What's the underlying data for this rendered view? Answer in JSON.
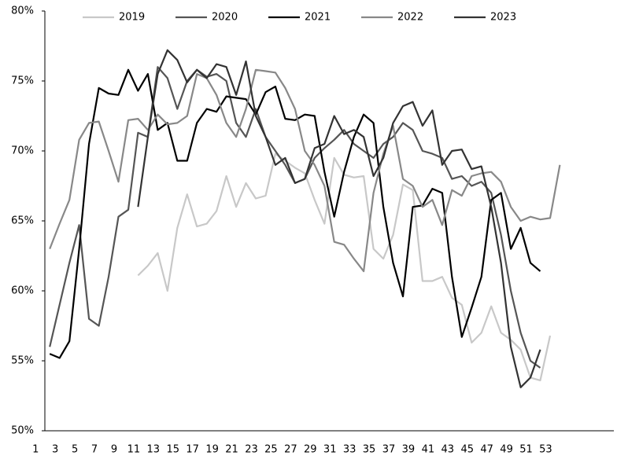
{
  "chart_data": {
    "type": "line",
    "categories": [
      1,
      null,
      3,
      null,
      5,
      null,
      7,
      null,
      9,
      null,
      11,
      null,
      13,
      null,
      15,
      null,
      17,
      null,
      19,
      null,
      21,
      null,
      23,
      null,
      25,
      null,
      27,
      null,
      29,
      null,
      31,
      null,
      33,
      null,
      35,
      null,
      37,
      null,
      39,
      null,
      41,
      null,
      43,
      null,
      45,
      null,
      47,
      null,
      49,
      null,
      51,
      null,
      53,
      null,
      null,
      null,
      null,
      null
    ],
    "series": [
      {
        "name": "2019",
        "color": "#c8c8c8",
        "values": [
          null,
          null,
          null,
          null,
          null,
          null,
          null,
          null,
          null,
          61.1,
          61.8,
          62.7,
          60,
          64.5,
          66.9,
          64.6,
          64.8,
          65.7,
          68.2,
          66,
          67.7,
          66.6,
          66.8,
          69.8,
          69.3,
          68.8,
          68.4,
          66.5,
          64.8,
          69.5,
          68.3,
          68.1,
          68.2,
          63,
          62.3,
          64,
          67.6,
          67.2,
          60.7,
          60.7,
          61,
          59.5,
          59,
          56.3,
          57,
          58.9,
          57,
          56.5,
          55.8,
          53.8,
          53.6,
          56.8,
          null,
          null,
          null,
          null,
          null,
          null
        ]
      },
      {
        "name": "2020",
        "color": "#555555",
        "values": [
          56,
          59,
          62,
          64.7,
          58,
          57.5,
          61,
          65.3,
          65.8,
          71.3,
          71,
          76,
          75.2,
          73,
          75,
          75.8,
          75.3,
          75.5,
          75,
          72,
          71,
          73,
          71,
          70,
          69,
          67.7,
          68,
          69.5,
          70.2,
          70.8,
          71.5,
          70.5,
          70,
          69.5,
          70.5,
          71,
          72,
          71.5,
          70,
          69.8,
          69.5,
          68,
          68.2,
          67.5,
          67.8,
          67,
          64,
          60,
          57,
          55,
          54.5,
          null,
          null,
          null,
          null,
          null,
          null,
          null
        ]
      },
      {
        "name": "2021",
        "color": "#000000",
        "values": [
          55.5,
          55.2,
          56.4,
          63,
          70.5,
          74.5,
          74.1,
          74,
          75.8,
          74.3,
          75.5,
          71.5,
          72,
          69.3,
          69.3,
          72,
          73,
          72.8,
          73.9,
          73.8,
          73.7,
          72.6,
          74.2,
          74.6,
          72.3,
          72.2,
          72.6,
          72.5,
          68.5,
          65.3,
          68.5,
          71,
          72.6,
          72,
          66,
          62,
          59.6,
          66,
          66.1,
          67.3,
          67,
          61,
          56.7,
          58.8,
          61,
          66.5,
          67,
          63,
          64.5,
          62,
          61.4,
          null,
          null,
          null,
          null,
          null,
          null,
          null
        ]
      },
      {
        "name": "2022",
        "color": "#888888",
        "values": [
          63,
          64.8,
          66.5,
          70.8,
          72,
          72.1,
          70,
          67.8,
          72.2,
          72.3,
          71.5,
          72.6,
          71.9,
          72,
          72.5,
          75.5,
          75.2,
          74,
          72,
          71,
          73,
          75.8,
          75.7,
          75.6,
          74.5,
          73,
          70,
          69,
          67.5,
          63.5,
          63.3,
          62.3,
          61.4,
          67,
          69.8,
          71.8,
          68,
          67.5,
          66,
          66.5,
          64.7,
          67.2,
          66.8,
          68.2,
          68.4,
          68.5,
          67.8,
          66,
          65,
          65.3,
          65.1,
          65.2,
          69,
          null,
          null,
          null,
          null,
          null
        ]
      },
      {
        "name": "2023",
        "color": "#333333",
        "values": [
          null,
          null,
          null,
          null,
          null,
          null,
          null,
          null,
          null,
          66,
          71,
          75.5,
          77.2,
          76.5,
          74.9,
          75.8,
          75.2,
          76.2,
          76,
          74,
          76.4,
          72.5,
          71,
          69,
          69.5,
          67.7,
          68,
          70.2,
          70.5,
          72.5,
          71.2,
          71.5,
          71,
          68.2,
          69.5,
          72,
          73.2,
          73.5,
          71.8,
          72.9,
          69,
          70,
          70.1,
          68.7,
          68.9,
          66,
          62,
          56,
          53.1,
          53.8,
          55.8,
          null,
          null,
          null,
          null,
          null,
          null,
          null
        ]
      }
    ],
    "ylim": [
      50,
      80
    ],
    "yticks": [
      {
        "value": 50,
        "label": "50%"
      },
      {
        "value": 55,
        "label": "55%"
      },
      {
        "value": 60,
        "label": "60%"
      },
      {
        "value": 65,
        "label": "65%"
      },
      {
        "value": 70,
        "label": "70%"
      },
      {
        "value": 75,
        "label": "75%"
      },
      {
        "value": 80,
        "label": "80%"
      }
    ],
    "grid": false,
    "legend": "top"
  }
}
